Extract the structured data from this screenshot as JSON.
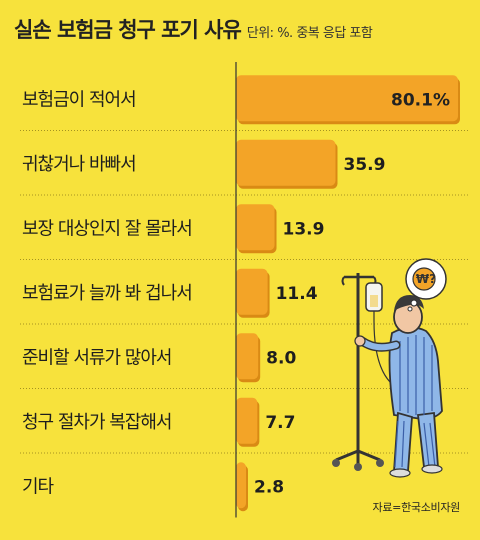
{
  "header": {
    "title": "실손 보험금 청구 포기 사유",
    "subtitle": "단위: %. 중복 응답 포함"
  },
  "source": "자료=한국소비자원",
  "colors": {
    "background": "#f7e23c",
    "bar": "#f3a427",
    "bar_shadow": "#d98a14",
    "divider": "#8a7a18",
    "text": "#1e1e1e"
  },
  "chart_data": {
    "type": "bar",
    "orientation": "horizontal",
    "title": "실손 보험금 청구 포기 사유",
    "subtitle": "단위: %. 중복 응답 포함",
    "categories": [
      "보험금이 적어서",
      "귀찮거나 바빠서",
      "보장 대상인지 잘 몰라서",
      "보험료가 늘까 봐 겁나서",
      "준비할 서류가 많아서",
      "청구 절차가 복잡해서",
      "기타"
    ],
    "values": [
      80.1,
      35.9,
      13.9,
      11.4,
      8.0,
      7.7,
      2.8
    ],
    "value_labels": [
      "80.1%",
      "35.9",
      "13.9",
      "11.4",
      "8.0",
      "7.7",
      "2.8"
    ],
    "xlim": [
      0,
      80.1
    ],
    "grid": false,
    "legend": "none",
    "source": "자료=한국소비자원"
  },
  "illustration": {
    "icon": "patient-with-iv-pole-icon",
    "bubble_text": "₩?"
  }
}
